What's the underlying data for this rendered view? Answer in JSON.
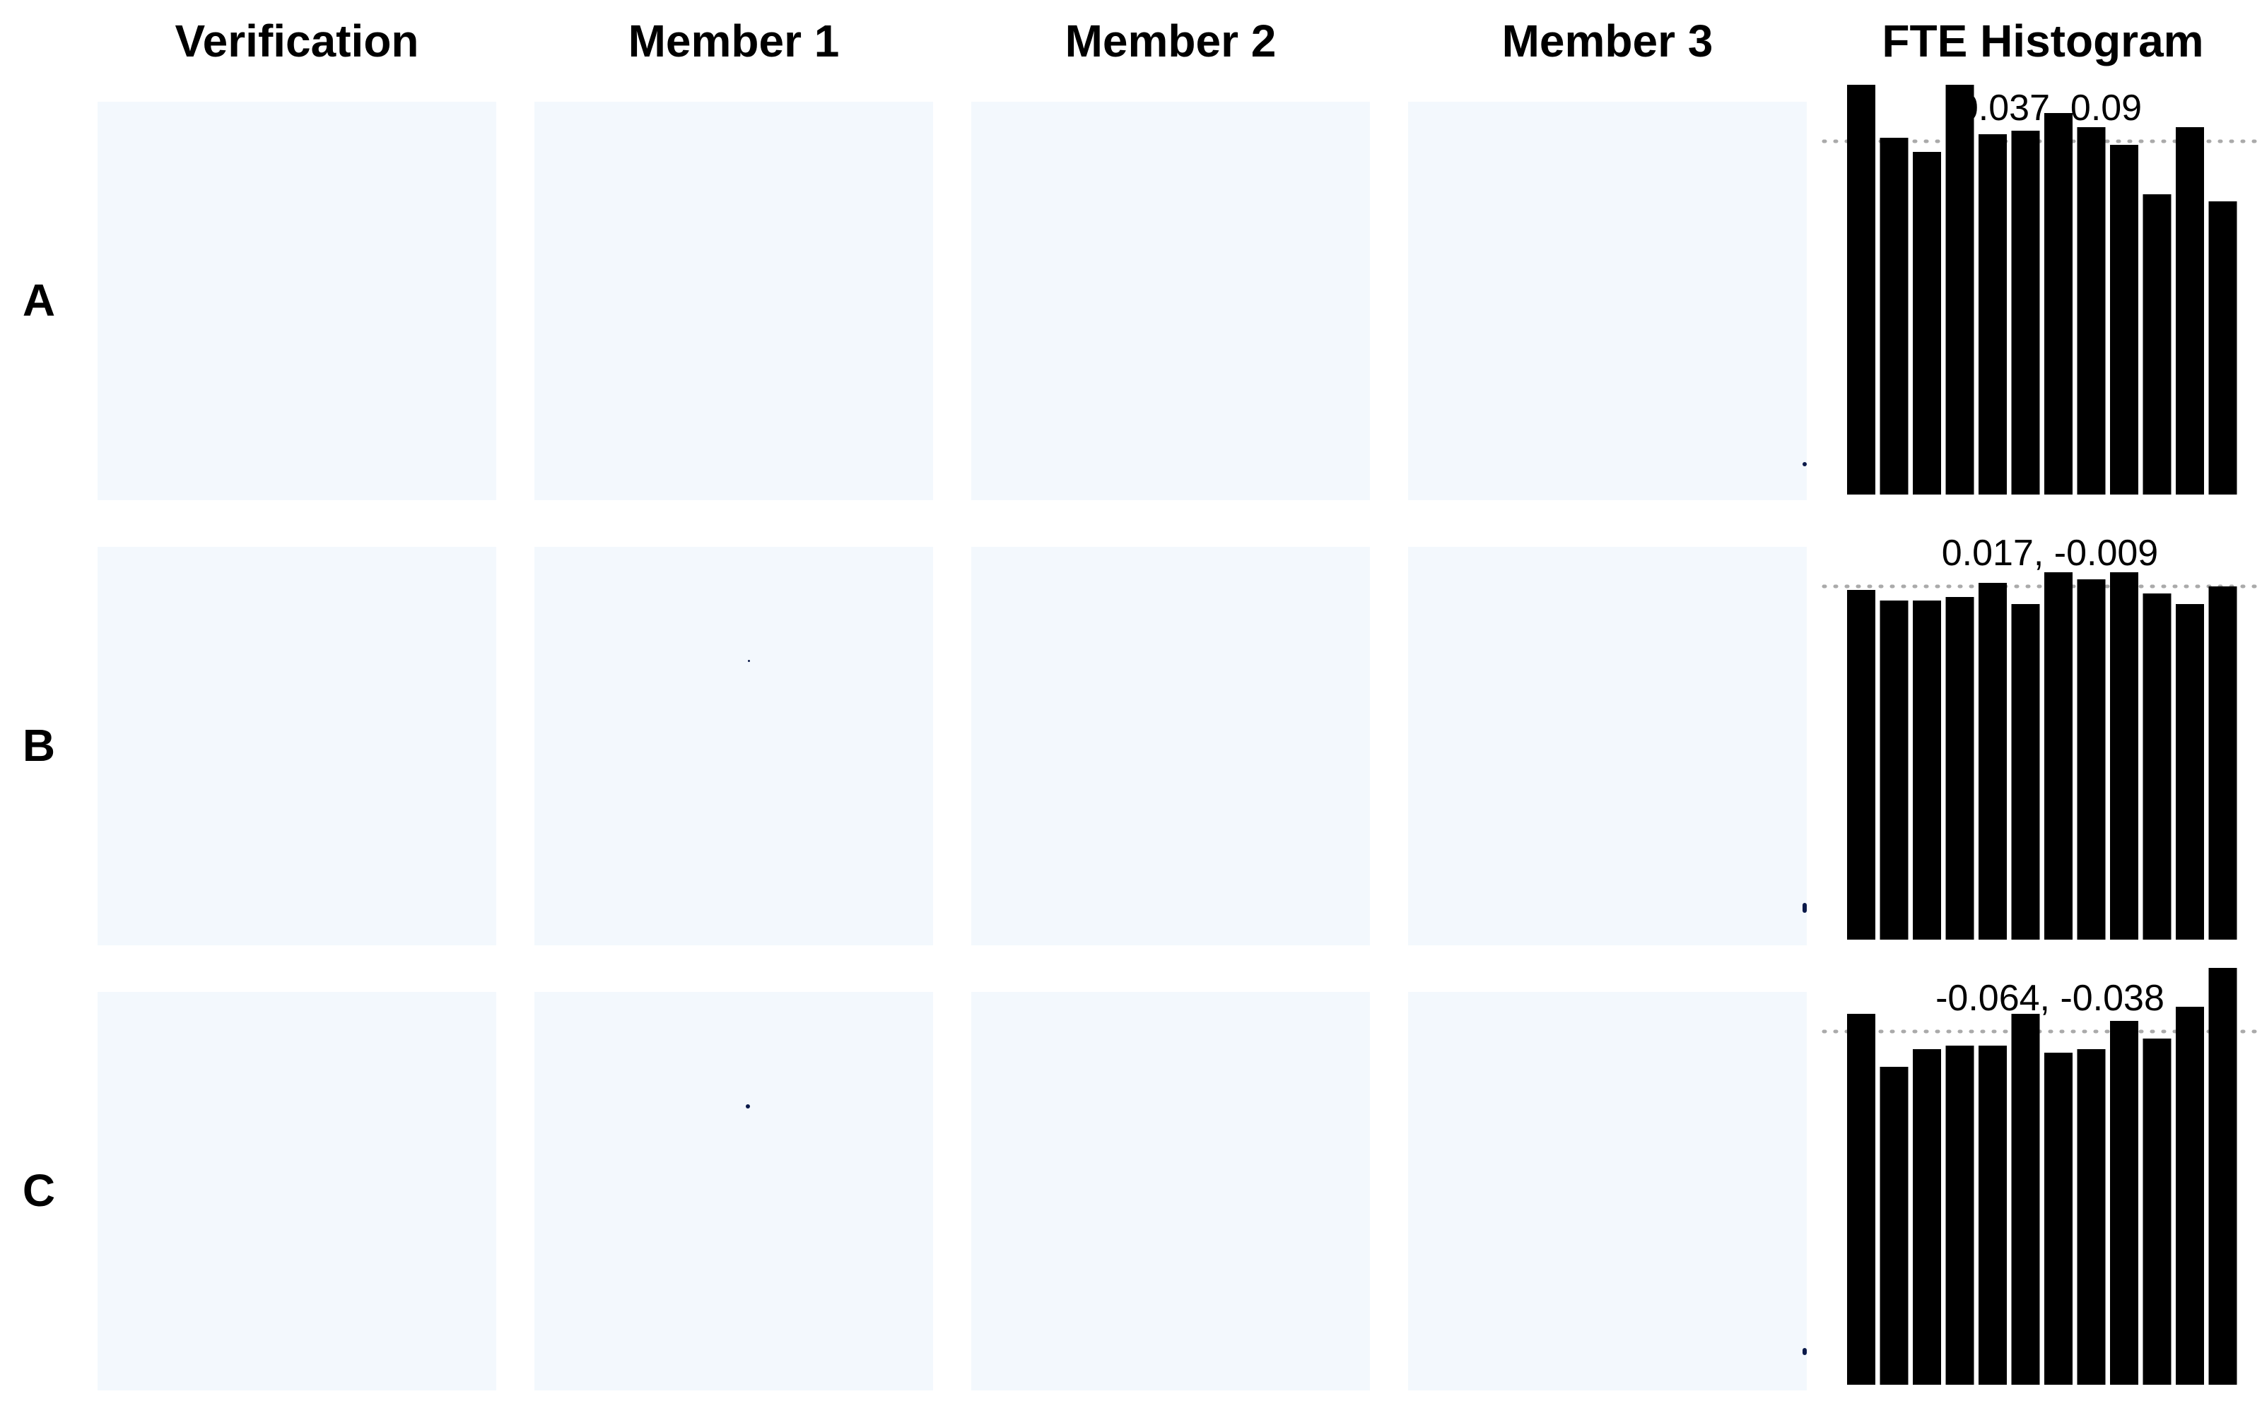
{
  "headers": {
    "verification": "Verification",
    "member1": "Member 1",
    "member2": "Member 2",
    "member3": "Member 3",
    "histogram": "FTE Histogram"
  },
  "rows": [
    {
      "label": "A",
      "stat_label": "0.037, 0.09"
    },
    {
      "label": "B",
      "stat_label": "0.017, -0.009"
    },
    {
      "label": "C",
      "stat_label": "-0.064, -0.038"
    }
  ],
  "colors": {
    "panel_background": "#f3f8fd",
    "bar_fill": "#000000",
    "reference_line": "#aaaaaa",
    "speck": "#0b1a4a"
  },
  "chart_data": [
    {
      "type": "bar",
      "title": "FTE Histogram",
      "row": "A",
      "annotation": "0.037, 0.09",
      "reference_line": "dotted horizontal at uniform level",
      "relative_heights": [
        1.16,
        1.01,
        0.97,
        1.16,
        1.02,
        1.03,
        1.08,
        1.04,
        0.99,
        0.85,
        1.04,
        0.83
      ],
      "ylim": [
        0,
        1.2
      ]
    },
    {
      "type": "bar",
      "title": "FTE Histogram",
      "row": "B",
      "annotation": "0.017, -0.009",
      "reference_line": "dotted horizontal at uniform level",
      "relative_heights": [
        0.99,
        0.96,
        0.96,
        0.97,
        1.01,
        0.95,
        1.04,
        1.02,
        1.04,
        0.98,
        0.95,
        1.0
      ],
      "ylim": [
        0,
        1.2
      ]
    },
    {
      "type": "bar",
      "title": "FTE Histogram",
      "row": "C",
      "annotation": "-0.064, -0.038",
      "reference_line": "dotted horizontal at uniform level",
      "relative_heights": [
        1.05,
        0.9,
        0.95,
        0.96,
        0.96,
        1.05,
        0.94,
        0.95,
        1.03,
        0.98,
        1.07,
        1.18
      ],
      "ylim": [
        0,
        1.2
      ]
    }
  ]
}
